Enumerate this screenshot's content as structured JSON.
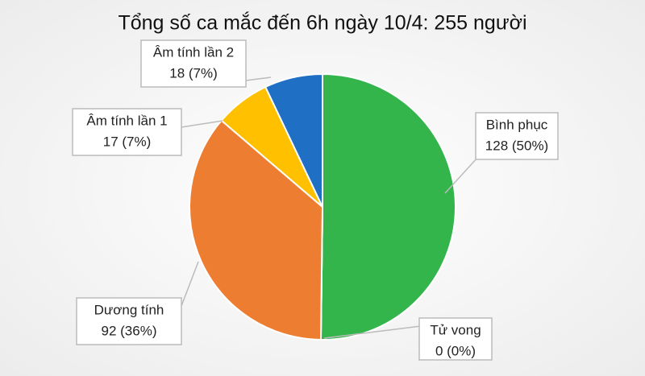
{
  "chart_data": {
    "type": "pie",
    "title": "Tổng số ca mắc đến 6h ngày 10/4: 255 người",
    "categories": [
      "Bình phục",
      "Tử vong",
      "Dương tính",
      "Âm tính lần 1",
      "Âm tính lần 2"
    ],
    "values": [
      128,
      0,
      92,
      17,
      18
    ],
    "value_labels": [
      "128 (50%)",
      "0 (0%)",
      "92 (36%)",
      "17 (7%)",
      "18 (7%)"
    ],
    "colors": [
      "#33b54c",
      "#a5a5a5",
      "#ed7d31",
      "#ffc000",
      "#1f6fc5"
    ]
  }
}
